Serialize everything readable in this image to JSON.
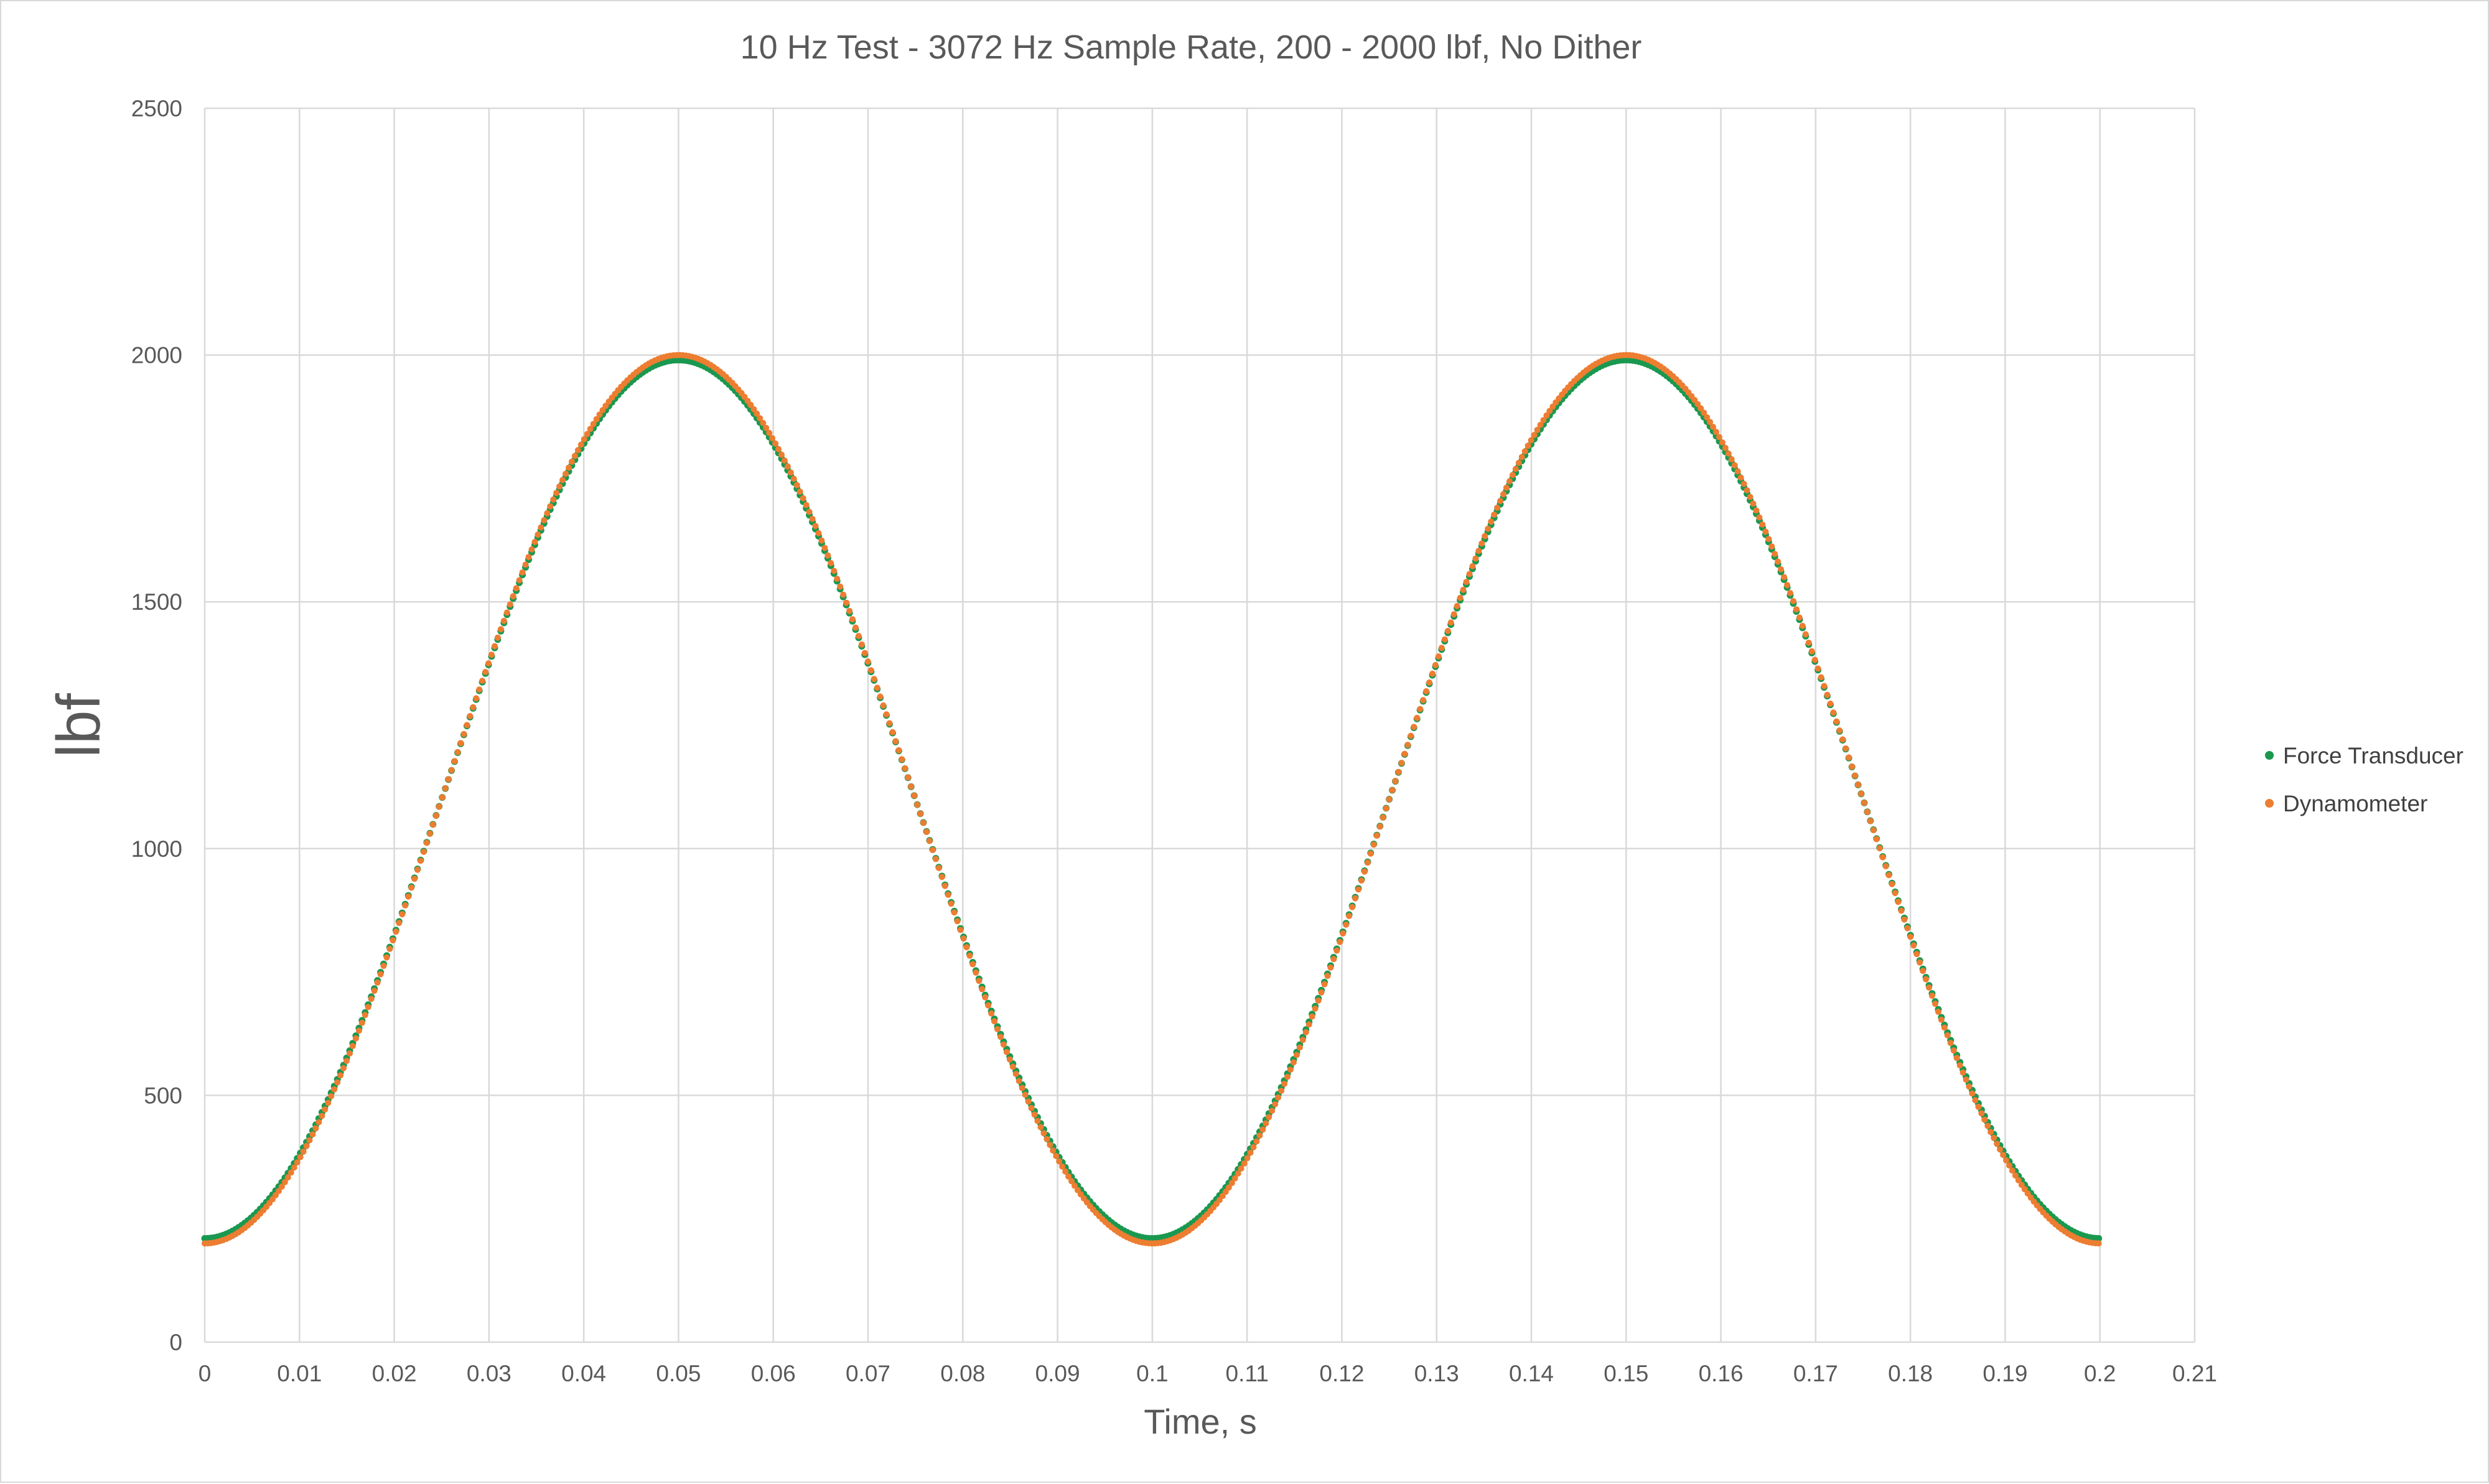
{
  "chart_data": {
    "type": "scatter",
    "title": "10 Hz Test - 3072 Hz Sample Rate, 200 - 2000 lbf, No Dither",
    "xlabel": "Time, s",
    "ylabel": "lbf",
    "xlim": [
      0,
      0.21
    ],
    "ylim": [
      0,
      2500
    ],
    "x_ticks": [
      "0",
      "0.01",
      "0.02",
      "0.03",
      "0.04",
      "0.05",
      "0.06",
      "0.07",
      "0.08",
      "0.09",
      "0.1",
      "0.11",
      "0.12",
      "0.13",
      "0.14",
      "0.15",
      "0.16",
      "0.17",
      "0.18",
      "0.19",
      "0.2",
      "0.21"
    ],
    "y_ticks": [
      "0",
      "500",
      "1000",
      "1500",
      "2000",
      "2500"
    ],
    "grid": true,
    "legend_position": "right",
    "sample_rate_hz": 3072,
    "x_range": [
      0,
      0.2
    ],
    "series": [
      {
        "name": "Force Transducer",
        "color": "#1a9850",
        "marker": "circle",
        "model": "y = 1100 - 890 * cos(2*pi*10*x)",
        "y_at_x0": 210,
        "y_peak": 1990,
        "y_trough": 210
      },
      {
        "name": "Dynamometer",
        "color": "#ed7d31",
        "marker": "circle",
        "model": "y = 1100 - 900 * cos(2*pi*10*x)",
        "y_at_x0": 200,
        "y_peak": 2000,
        "y_trough": 200
      }
    ]
  }
}
